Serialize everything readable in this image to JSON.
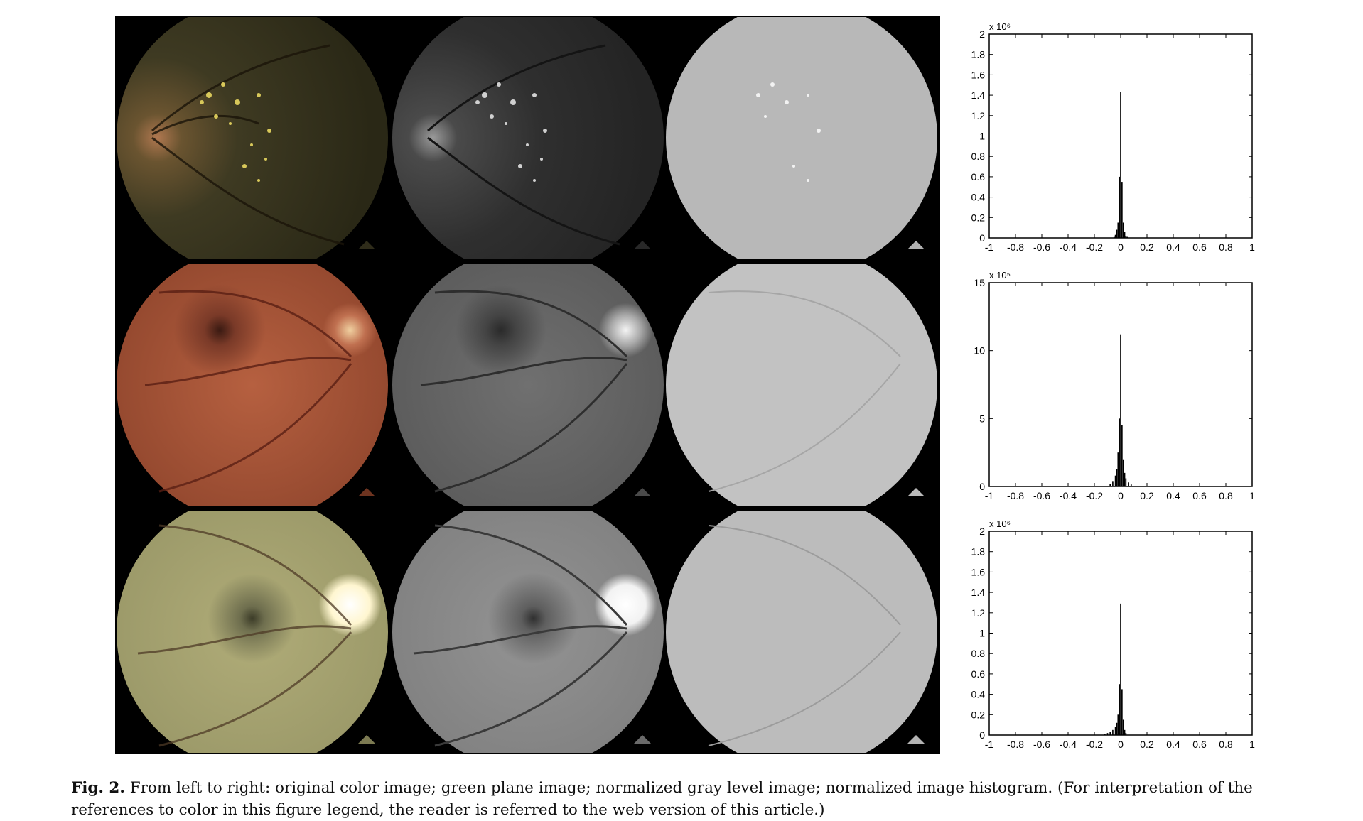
{
  "caption": {
    "label": "Fig. 2.",
    "text": " From left to right: original color image; green plane image; normalized gray level image; normalized image histogram. (For interpretation of the references to color in this figure legend, the reader is referred to the web version of this article.)"
  },
  "colors": {
    "panel_background": "#000000",
    "fundus_original_row1": "#3a3420",
    "fundus_original_row2": "#a4553a",
    "fundus_original_row3": "#a8a672",
    "fundus_green_row1": "#303030",
    "fundus_green_row2": "#6c6c6c",
    "fundus_green_row3": "#8e8e8e",
    "fundus_normalized": "#bdbdbd"
  },
  "chart_data": [
    {
      "type": "bar",
      "exponent_label": "x 10⁶",
      "xlim": [
        -1,
        1
      ],
      "ylim": [
        0,
        2
      ],
      "xticks": [
        "-1",
        "-0.8",
        "-0.6",
        "-0.4",
        "-0.2",
        "0",
        "0.2",
        "0.4",
        "0.6",
        "0.8",
        "1"
      ],
      "yticks": [
        "0",
        "0.2",
        "0.4",
        "0.6",
        "0.8",
        "1",
        "1.2",
        "1.4",
        "1.6",
        "1.8",
        "2"
      ],
      "x": [
        -0.05,
        -0.04,
        -0.03,
        -0.02,
        -0.01,
        0,
        0.01,
        0.02,
        0.03,
        0.04,
        0.05
      ],
      "values": [
        0.01,
        0.03,
        0.08,
        0.15,
        0.6,
        1.43,
        0.55,
        0.15,
        0.06,
        0.02,
        0.01
      ]
    },
    {
      "type": "bar",
      "exponent_label": "x 10⁵",
      "xlim": [
        -1,
        1
      ],
      "ylim": [
        0,
        15
      ],
      "xticks": [
        "-1",
        "-0.8",
        "-0.6",
        "-0.4",
        "-0.2",
        "0",
        "0.2",
        "0.4",
        "0.6",
        "0.8",
        "1"
      ],
      "yticks": [
        "0",
        "5",
        "10",
        "15"
      ],
      "x": [
        -0.08,
        -0.06,
        -0.04,
        -0.03,
        -0.02,
        -0.01,
        0,
        0.01,
        0.02,
        0.03,
        0.04,
        0.06,
        0.08
      ],
      "values": [
        0.2,
        0.4,
        0.8,
        1.3,
        2.5,
        5.0,
        11.2,
        4.5,
        2.0,
        1.0,
        0.6,
        0.3,
        0.15
      ]
    },
    {
      "type": "bar",
      "exponent_label": "x 10⁶",
      "xlim": [
        -1,
        1
      ],
      "ylim": [
        0,
        2
      ],
      "xticks": [
        "-1",
        "-0.8",
        "-0.6",
        "-0.4",
        "-0.2",
        "0",
        "0.2",
        "0.4",
        "0.6",
        "0.8",
        "1"
      ],
      "yticks": [
        "0",
        "0.2",
        "0.4",
        "0.6",
        "0.8",
        "1",
        "1.2",
        "1.4",
        "1.6",
        "1.8",
        "2"
      ],
      "x": [
        -0.12,
        -0.1,
        -0.08,
        -0.06,
        -0.04,
        -0.03,
        -0.02,
        -0.01,
        0,
        0.01,
        0.02,
        0.03,
        0.04
      ],
      "values": [
        0.01,
        0.02,
        0.03,
        0.05,
        0.08,
        0.12,
        0.2,
        0.5,
        1.29,
        0.45,
        0.15,
        0.05,
        0.02
      ]
    }
  ]
}
